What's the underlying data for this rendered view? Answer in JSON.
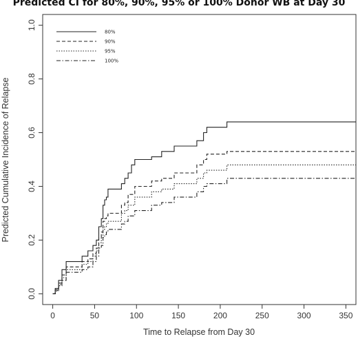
{
  "chart_data": {
    "type": "line",
    "title": "Predicted CI for 80%, 90%, 95% or 100% Donor WB at Day 30",
    "xlabel": "Time to Relapse from Day 30",
    "ylabel": "Predicted Cumulative Incidence of Relapse",
    "xlim": [
      -12,
      362
    ],
    "ylim": [
      -0.04,
      1.04
    ],
    "x_ticks": [
      0,
      50,
      100,
      150,
      200,
      250,
      300,
      350
    ],
    "y_ticks": [
      0.0,
      0.2,
      0.4,
      0.6,
      0.8,
      1.0
    ],
    "y_tick_labels": [
      "0.0",
      "0.2",
      "0.4",
      "0.6",
      "0.8",
      "1.0"
    ],
    "grid": false,
    "legend_position": "top-left",
    "step": true,
    "series": [
      {
        "name": "80%",
        "line_style": "solid",
        "x": [
          0,
          3,
          7,
          11,
          16,
          35,
          42,
          48,
          52,
          55,
          58,
          60,
          62,
          64,
          66,
          67,
          82,
          86,
          90,
          94,
          98,
          118,
          130,
          145,
          172,
          180,
          184,
          208,
          362
        ],
        "y": [
          0.0,
          0.02,
          0.05,
          0.09,
          0.12,
          0.14,
          0.16,
          0.18,
          0.2,
          0.25,
          0.28,
          0.33,
          0.35,
          0.36,
          0.39,
          0.39,
          0.41,
          0.43,
          0.45,
          0.48,
          0.5,
          0.51,
          0.53,
          0.55,
          0.57,
          0.6,
          0.62,
          0.64,
          0.64
        ]
      },
      {
        "name": "90%",
        "line_style": "dashed",
        "x": [
          0,
          3,
          7,
          11,
          16,
          35,
          42,
          48,
          52,
          55,
          58,
          60,
          62,
          64,
          66,
          82,
          86,
          90,
          98,
          118,
          130,
          145,
          172,
          180,
          184,
          208,
          362
        ],
        "y": [
          0.0,
          0.015,
          0.04,
          0.07,
          0.1,
          0.12,
          0.13,
          0.15,
          0.17,
          0.21,
          0.23,
          0.27,
          0.28,
          0.29,
          0.3,
          0.33,
          0.34,
          0.37,
          0.4,
          0.42,
          0.43,
          0.45,
          0.48,
          0.5,
          0.52,
          0.53,
          0.53
        ]
      },
      {
        "name": "95%",
        "line_style": "dotted",
        "x": [
          0,
          3,
          7,
          11,
          16,
          35,
          42,
          48,
          52,
          55,
          58,
          60,
          62,
          64,
          66,
          82,
          86,
          90,
          98,
          118,
          130,
          145,
          172,
          180,
          184,
          208,
          362
        ],
        "y": [
          0.0,
          0.012,
          0.035,
          0.06,
          0.09,
          0.11,
          0.12,
          0.14,
          0.16,
          0.19,
          0.21,
          0.24,
          0.25,
          0.26,
          0.27,
          0.3,
          0.31,
          0.33,
          0.36,
          0.38,
          0.39,
          0.41,
          0.43,
          0.45,
          0.46,
          0.48,
          0.48
        ]
      },
      {
        "name": "100%",
        "line_style": "dashdot",
        "x": [
          0,
          3,
          7,
          11,
          16,
          35,
          42,
          48,
          52,
          55,
          58,
          60,
          62,
          64,
          66,
          82,
          86,
          90,
          98,
          118,
          130,
          145,
          172,
          180,
          184,
          208,
          362
        ],
        "y": [
          0.0,
          0.01,
          0.03,
          0.05,
          0.08,
          0.09,
          0.1,
          0.12,
          0.14,
          0.17,
          0.18,
          0.21,
          0.22,
          0.23,
          0.24,
          0.26,
          0.27,
          0.29,
          0.31,
          0.33,
          0.34,
          0.36,
          0.38,
          0.4,
          0.41,
          0.43,
          0.43
        ]
      }
    ]
  }
}
